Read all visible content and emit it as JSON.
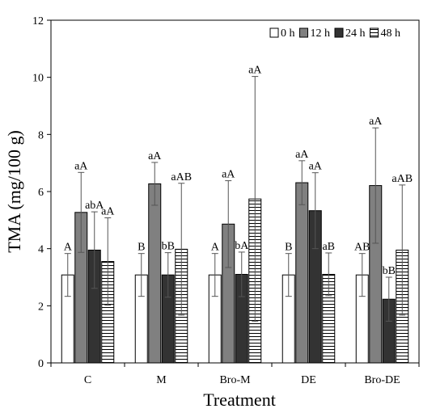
{
  "chart_data": {
    "type": "bar",
    "title": "",
    "xlabel": "Treatment",
    "ylabel": "TMA (mg/100 g)",
    "ylim": [
      0,
      12
    ],
    "yticks": [
      0,
      2,
      4,
      6,
      8,
      10,
      12
    ],
    "grid": false,
    "legend_position": "top-right",
    "categories": [
      "C",
      "M",
      "Bro-M",
      "DE",
      "Bro-DE"
    ],
    "series": [
      {
        "name": "0 h",
        "pattern": "open",
        "fill": "#ffffff",
        "values": [
          3.08,
          3.08,
          3.08,
          3.08,
          3.08
        ],
        "errors": [
          0.75,
          0.75,
          0.75,
          0.75,
          0.75
        ],
        "labels": [
          "A",
          "B",
          "A",
          "B",
          "AB"
        ]
      },
      {
        "name": "12 h",
        "pattern": "solid",
        "fill": "#808080",
        "values": [
          5.27,
          6.27,
          4.86,
          6.31,
          6.21
        ],
        "errors": [
          1.4,
          0.75,
          1.52,
          0.77,
          2.02
        ],
        "labels": [
          "aA",
          "aA",
          "aA",
          "aA",
          "aA"
        ]
      },
      {
        "name": "24 h",
        "pattern": "solid",
        "fill": "#333333",
        "values": [
          3.95,
          3.08,
          3.1,
          5.33,
          2.23
        ],
        "errors": [
          1.34,
          0.78,
          0.78,
          1.33,
          0.77
        ],
        "labels": [
          "abA",
          "bB",
          "bA",
          "aA",
          "bB"
        ]
      },
      {
        "name": "48 h",
        "pattern": "horizontal-stripes",
        "fill": "#ffffff",
        "values": [
          3.55,
          3.98,
          5.74,
          3.1,
          3.95
        ],
        "errors": [
          1.53,
          2.31,
          4.29,
          0.75,
          2.28
        ],
        "labels": [
          "aA",
          "aAB",
          "aA",
          "aB",
          "aAB"
        ]
      }
    ]
  }
}
